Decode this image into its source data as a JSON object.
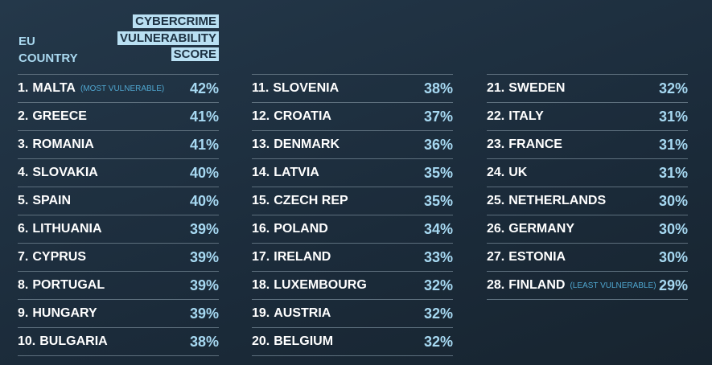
{
  "header": {
    "country_label": "EU COUNTRY",
    "score_label": "CYBERCRIME VULNERABILITY SCORE"
  },
  "columns": [
    [
      {
        "rank": "1.",
        "country": "MALTA",
        "note": "(MOST VULNERABLE)",
        "score": "42%"
      },
      {
        "rank": "2.",
        "country": "GREECE",
        "score": "41%"
      },
      {
        "rank": "3.",
        "country": "ROMANIA",
        "score": "41%"
      },
      {
        "rank": "4.",
        "country": "SLOVAKIA",
        "score": "40%"
      },
      {
        "rank": "5.",
        "country": "SPAIN",
        "score": "40%"
      },
      {
        "rank": "6.",
        "country": "LITHUANIA",
        "score": "39%"
      },
      {
        "rank": "7.",
        "country": "CYPRUS",
        "score": "39%"
      },
      {
        "rank": "8.",
        "country": "PORTUGAL",
        "score": "39%"
      },
      {
        "rank": "9.",
        "country": "HUNGARY",
        "score": "39%"
      },
      {
        "rank": "10.",
        "country": "BULGARIA",
        "score": "38%"
      }
    ],
    [
      {
        "rank": "11.",
        "country": "SLOVENIA",
        "score": "38%"
      },
      {
        "rank": "12.",
        "country": "CROATIA",
        "score": "37%"
      },
      {
        "rank": "13.",
        "country": "DENMARK",
        "score": "36%"
      },
      {
        "rank": "14.",
        "country": "LATVIA",
        "score": "35%"
      },
      {
        "rank": "15.",
        "country": "CZECH REP",
        "score": "35%"
      },
      {
        "rank": "16.",
        "country": "POLAND",
        "score": "34%"
      },
      {
        "rank": "17.",
        "country": "IRELAND",
        "score": "33%"
      },
      {
        "rank": "18.",
        "country": "LUXEMBOURG",
        "score": "32%"
      },
      {
        "rank": "19.",
        "country": "AUSTRIA",
        "score": "32%"
      },
      {
        "rank": "20.",
        "country": "BELGIUM",
        "score": "32%"
      }
    ],
    [
      {
        "rank": "21.",
        "country": "SWEDEN",
        "score": "32%"
      },
      {
        "rank": "22.",
        "country": "ITALY",
        "score": "31%"
      },
      {
        "rank": "23.",
        "country": "FRANCE",
        "score": "31%"
      },
      {
        "rank": "24.",
        "country": "UK",
        "score": "31%"
      },
      {
        "rank": "25.",
        "country": "NETHERLANDS",
        "score": "30%"
      },
      {
        "rank": "26.",
        "country": "GERMANY",
        "score": "30%"
      },
      {
        "rank": "27.",
        "country": "ESTONIA",
        "score": "30%"
      },
      {
        "rank": "28.",
        "country": "FINLAND",
        "note": "(LEAST VULNERABLE)",
        "score": "29%"
      }
    ]
  ]
}
